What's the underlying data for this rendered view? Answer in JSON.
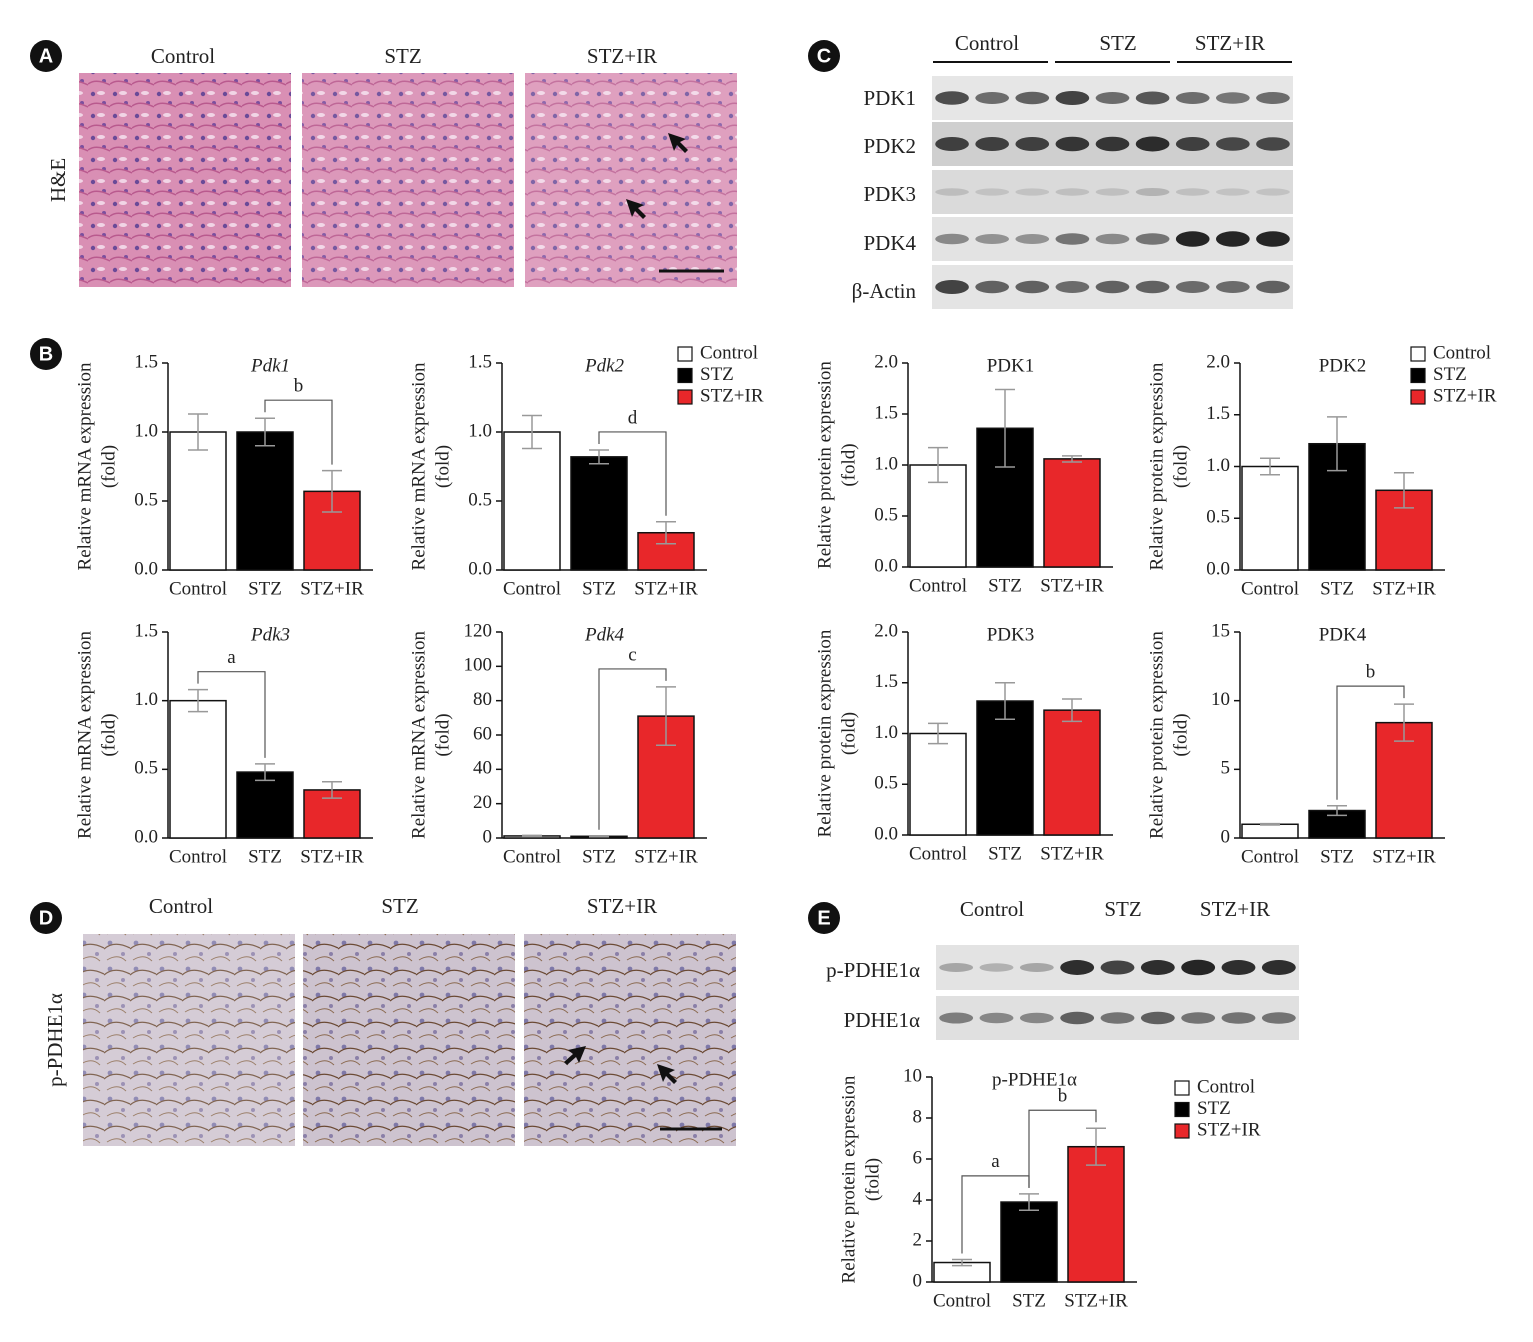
{
  "panels": {
    "A": {
      "label": "A",
      "row_label": "H&E",
      "columns": [
        "Control",
        "STZ",
        "STZ+IR"
      ]
    },
    "B": {
      "label": "B"
    },
    "C": {
      "label": "C",
      "groups": [
        "Control",
        "STZ",
        "STZ+IR"
      ],
      "rows": [
        "PDK1",
        "PDK2",
        "PDK3",
        "PDK4",
        "β-Actin"
      ]
    },
    "D": {
      "label": "D",
      "row_label": "p-PDHE1α",
      "columns": [
        "Control",
        "STZ",
        "STZ+IR"
      ]
    },
    "E": {
      "label": "E",
      "groups": [
        "Control",
        "STZ",
        "STZ+IR"
      ],
      "rows": [
        "p-PDHE1α",
        "PDHE1α"
      ]
    }
  },
  "chart_data": [
    {
      "type": "bar",
      "title": "Pdk1",
      "title_italic": true,
      "ylabel": [
        "Relative mRNA expression",
        "(fold)"
      ],
      "categories": [
        "Control",
        "STZ",
        "STZ+IR"
      ],
      "values": [
        1.0,
        1.0,
        0.57
      ],
      "errors": [
        0.13,
        0.1,
        0.15
      ],
      "colors": [
        "#ffffff",
        "#000000",
        "#e8272a"
      ],
      "ylim": [
        0,
        1.5
      ],
      "yticks": [
        {
          "value": 0,
          "label": "0.0"
        },
        0.5,
        {
          "value": 1,
          "label": "1.0"
        },
        1.5
      ],
      "brackets": [
        {
          "between": [
            "STZ",
            "STZ+IR"
          ],
          "label": "b"
        }
      ]
    },
    {
      "type": "bar",
      "title": "Pdk2",
      "title_italic": true,
      "ylabel": [
        "Relative mRNA expression",
        "(fold)"
      ],
      "categories": [
        "Control",
        "STZ",
        "STZ+IR"
      ],
      "values": [
        1.0,
        0.82,
        0.27
      ],
      "errors": [
        0.12,
        0.05,
        0.08
      ],
      "colors": [
        "#ffffff",
        "#000000",
        "#e8272a"
      ],
      "ylim": [
        0,
        1.5
      ],
      "yticks": [
        {
          "value": 0,
          "label": "0.0"
        },
        0.5,
        {
          "value": 1,
          "label": "1.0"
        },
        1.5
      ],
      "brackets": [
        {
          "between": [
            "STZ",
            "STZ+IR"
          ],
          "label": "d"
        }
      ],
      "legend": [
        "Control",
        "STZ",
        "STZ+IR"
      ]
    },
    {
      "type": "bar",
      "title": "PDK1",
      "title_italic": false,
      "ylabel": [
        "Relative protein expression",
        "(fold)"
      ],
      "categories": [
        "Control",
        "STZ",
        "STZ+IR"
      ],
      "values": [
        1.0,
        1.36,
        1.06
      ],
      "errors": [
        0.17,
        0.38,
        0.03
      ],
      "colors": [
        "#ffffff",
        "#000000",
        "#e8272a"
      ],
      "ylim": [
        0,
        2
      ],
      "yticks": [
        {
          "value": 0,
          "label": "0.0"
        },
        0.5,
        {
          "value": 1,
          "label": "1.0"
        },
        1.5,
        {
          "value": 2,
          "label": "2.0"
        }
      ]
    },
    {
      "type": "bar",
      "title": "PDK2",
      "title_italic": false,
      "ylabel": [
        "Relative protein expression",
        "(fold)"
      ],
      "categories": [
        "Control",
        "STZ",
        "STZ+IR"
      ],
      "values": [
        1.0,
        1.22,
        0.77
      ],
      "errors": [
        0.08,
        0.26,
        0.17
      ],
      "colors": [
        "#ffffff",
        "#000000",
        "#e8272a"
      ],
      "ylim": [
        0,
        2
      ],
      "yticks": [
        {
          "value": 0,
          "label": "0.0"
        },
        0.5,
        {
          "value": 1,
          "label": "1.0"
        },
        1.5,
        {
          "value": 2,
          "label": "2.0"
        }
      ],
      "legend": [
        "Control",
        "STZ",
        "STZ+IR"
      ]
    },
    {
      "type": "bar",
      "title": "Pdk3",
      "title_italic": true,
      "ylabel": [
        "Relative mRNA expression",
        "(fold)"
      ],
      "categories": [
        "Control",
        "STZ",
        "STZ+IR"
      ],
      "values": [
        1.0,
        0.48,
        0.35
      ],
      "errors": [
        0.08,
        0.06,
        0.06
      ],
      "colors": [
        "#ffffff",
        "#000000",
        "#e8272a"
      ],
      "ylim": [
        0,
        1.5
      ],
      "yticks": [
        {
          "value": 0,
          "label": "0.0"
        },
        0.5,
        {
          "value": 1,
          "label": "1.0"
        },
        1.5
      ],
      "brackets": [
        {
          "between": [
            "Control",
            "STZ"
          ],
          "label": "a"
        }
      ]
    },
    {
      "type": "bar",
      "title": "Pdk4",
      "title_italic": true,
      "ylabel": [
        "Relative mRNA expression",
        "(fold)"
      ],
      "categories": [
        "Control",
        "STZ",
        "STZ+IR"
      ],
      "values": [
        1.2,
        1.0,
        71
      ],
      "errors": [
        0.3,
        0.3,
        17
      ],
      "colors": [
        "#ffffff",
        "#000000",
        "#e8272a"
      ],
      "ylim": [
        0,
        120
      ],
      "yticks": [
        0,
        20,
        40,
        60,
        80,
        100,
        120
      ],
      "brackets": [
        {
          "between": [
            "STZ",
            "STZ+IR"
          ],
          "label": "c"
        }
      ]
    },
    {
      "type": "bar",
      "title": "PDK3",
      "title_italic": false,
      "ylabel": [
        "Relative protein expression",
        "(fold)"
      ],
      "categories": [
        "Control",
        "STZ",
        "STZ+IR"
      ],
      "values": [
        1.0,
        1.32,
        1.23
      ],
      "errors": [
        0.1,
        0.18,
        0.11
      ],
      "colors": [
        "#ffffff",
        "#000000",
        "#e8272a"
      ],
      "ylim": [
        0,
        2
      ],
      "yticks": [
        {
          "value": 0,
          "label": "0.0"
        },
        0.5,
        {
          "value": 1,
          "label": "1.0"
        },
        1.5,
        {
          "value": 2,
          "label": "2.0"
        }
      ]
    },
    {
      "type": "bar",
      "title": "PDK4",
      "title_italic": false,
      "ylabel": [
        "Relative protein expression",
        "(fold)"
      ],
      "categories": [
        "Control",
        "STZ",
        "STZ+IR"
      ],
      "values": [
        1.0,
        2.0,
        8.4
      ],
      "errors": [
        0.05,
        0.35,
        1.35
      ],
      "colors": [
        "#ffffff",
        "#000000",
        "#e8272a"
      ],
      "ylim": [
        0,
        15
      ],
      "yticks": [
        0,
        5,
        10,
        15
      ],
      "brackets": [
        {
          "between": [
            "STZ",
            "STZ+IR"
          ],
          "label": "b"
        }
      ]
    },
    {
      "type": "bar",
      "title": "p-PDHE1α",
      "title_italic": false,
      "ylabel": [
        "Relative protein expression",
        "(fold)"
      ],
      "categories": [
        "Control",
        "STZ",
        "STZ+IR"
      ],
      "values": [
        0.95,
        3.9,
        6.6
      ],
      "errors": [
        0.15,
        0.4,
        0.9
      ],
      "colors": [
        "#ffffff",
        "#000000",
        "#e8272a"
      ],
      "ylim": [
        0,
        10
      ],
      "yticks": [
        0,
        2,
        4,
        6,
        8,
        10
      ],
      "brackets": [
        {
          "between": [
            "Control",
            "STZ"
          ],
          "label": "a"
        },
        {
          "between": [
            "STZ",
            "STZ+IR"
          ],
          "label": "b"
        }
      ],
      "legend": [
        "Control",
        "STZ",
        "STZ+IR"
      ]
    }
  ]
}
